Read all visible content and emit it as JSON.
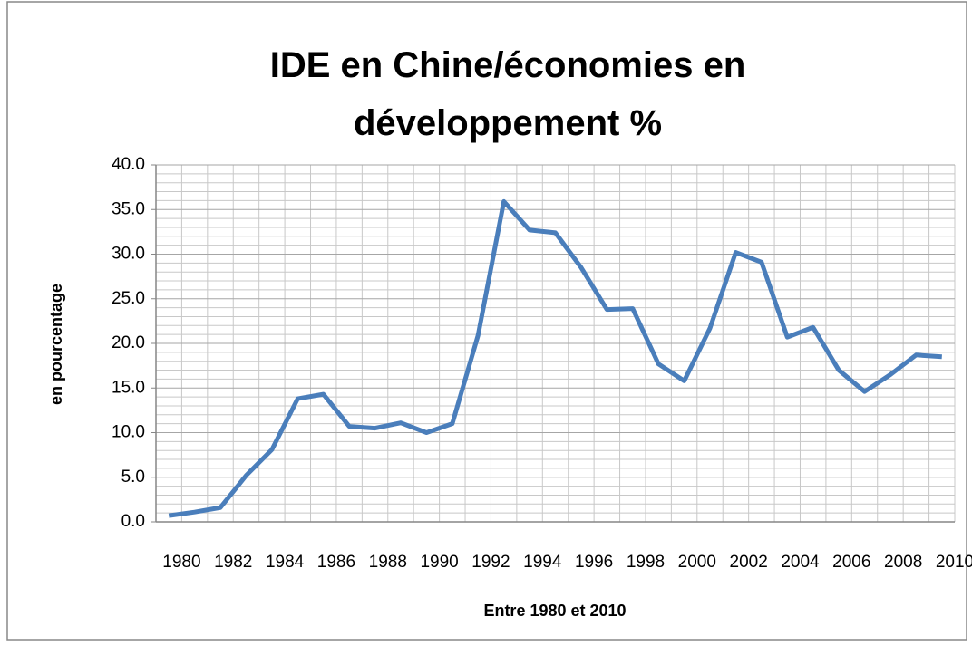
{
  "chart_data": {
    "type": "line",
    "title": "IDE en Chine/économies en développement %",
    "x_label": "Entre 1980 et 2010",
    "y_label": "en pourcentage",
    "categories": [
      "1980",
      null,
      "1982",
      null,
      "1984",
      null,
      "1986",
      null,
      "1988",
      null,
      "1990",
      null,
      "1992",
      null,
      "1994",
      null,
      "1996",
      null,
      "1998",
      null,
      "2000",
      null,
      "2002",
      null,
      "2004",
      null,
      "2006",
      null,
      "2008",
      null,
      "2010"
    ],
    "series": [
      {
        "color": "#4a7ebb",
        "values": [
          0.7,
          1.1,
          1.6,
          5.2,
          8.1,
          13.8,
          14.3,
          10.7,
          10.5,
          11.1,
          10.0,
          11.0,
          20.9,
          35.9,
          32.7,
          32.4,
          28.5,
          23.8,
          23.9,
          17.7,
          15.8,
          21.7,
          30.2,
          29.1,
          20.7,
          21.8,
          17.0,
          14.6,
          16.5,
          18.7,
          18.5
        ]
      }
    ],
    "ylim": [
      0,
      40
    ],
    "yticks": [
      {
        "value": 0,
        "label": "0.0"
      },
      {
        "value": 5,
        "label": "5.0"
      },
      {
        "value": 10,
        "label": "10.0"
      },
      {
        "value": 15,
        "label": "15.0"
      },
      {
        "value": 20,
        "label": "20.0"
      },
      {
        "value": 25,
        "label": "25.0"
      },
      {
        "value": 30,
        "label": "30.0"
      },
      {
        "value": 35,
        "label": "35.0"
      },
      {
        "value": 40,
        "label": "40.0"
      }
    ],
    "grid": true
  }
}
